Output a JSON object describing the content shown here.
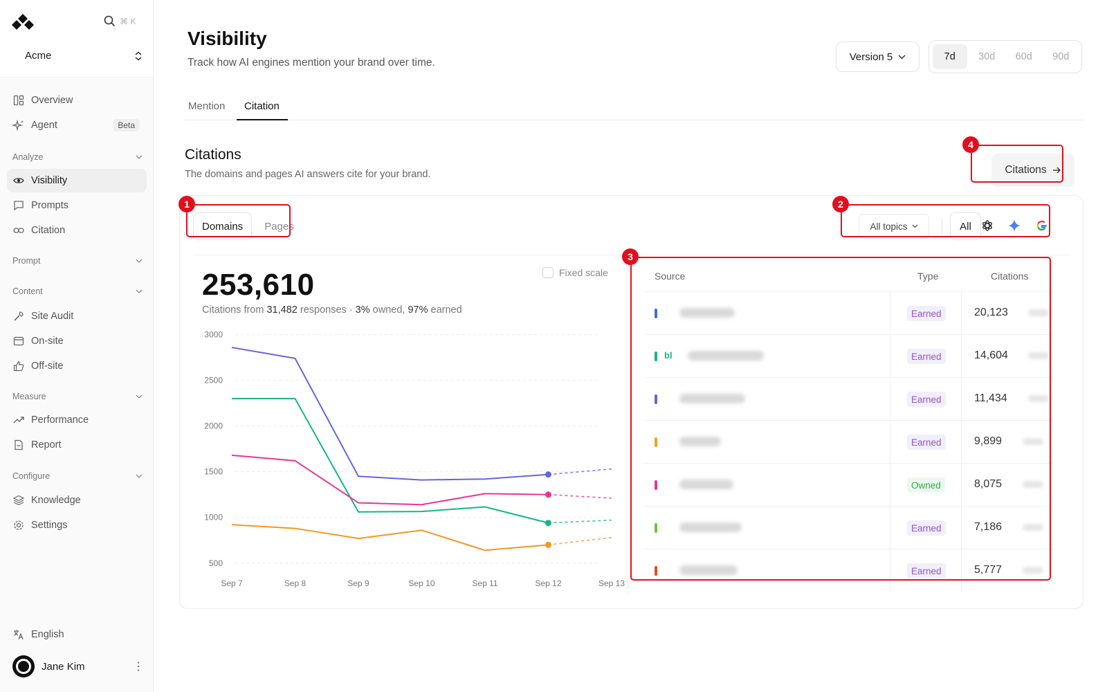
{
  "sidebar": {
    "search_shortcut": "⌘ K",
    "org_name": "Acme",
    "nav_top": [
      {
        "label": "Overview"
      },
      {
        "label": "Agent",
        "badge": "Beta"
      }
    ],
    "sections": {
      "analyze": "Analyze",
      "prompt": "Prompt",
      "content": "Content",
      "measure": "Measure",
      "configure": "Configure"
    },
    "analyze_items": [
      {
        "label": "Visibility"
      },
      {
        "label": "Prompts"
      },
      {
        "label": "Citation"
      }
    ],
    "content_items": [
      {
        "label": "Site Audit"
      },
      {
        "label": "On-site"
      },
      {
        "label": "Off-site"
      }
    ],
    "measure_items": [
      {
        "label": "Performance"
      },
      {
        "label": "Report"
      }
    ],
    "configure_items": [
      {
        "label": "Knowledge"
      },
      {
        "label": "Settings"
      }
    ],
    "language": "English",
    "user_name": "Jane Kim"
  },
  "header": {
    "title": "Visibility",
    "subtitle": "Track how AI engines mention your brand over time.",
    "version": "Version 5",
    "ranges": [
      "7d",
      "30d",
      "60d",
      "90d"
    ],
    "active_range": "7d"
  },
  "tabs": [
    {
      "label": "Mention"
    },
    {
      "label": "Citation"
    }
  ],
  "citations": {
    "title": "Citations",
    "subtitle": "The domains and pages AI answers cite for your brand.",
    "link_label": "Citations",
    "segments": [
      "Domains",
      "Pages"
    ],
    "topic_filter": "All topics",
    "engine_all": "All",
    "engines": [
      "chatgpt-icon",
      "gemini-icon",
      "google-icon"
    ],
    "total": "253,610",
    "sub_prefix": "Citations from",
    "responses": "31,482",
    "sub_mid": "responses ·",
    "owned_pct": "3%",
    "sub_owned": "owned,",
    "earned_pct": "97%",
    "sub_earned": "earned",
    "fixed_scale_label": "Fixed scale"
  },
  "annotations": [
    "1",
    "2",
    "3",
    "4"
  ],
  "table": {
    "headers": {
      "source": "Source",
      "type": "Type",
      "citations": "Citations"
    },
    "rows": [
      {
        "color": "#3b6fd4",
        "type": "Earned",
        "count": "20,123",
        "fav": ""
      },
      {
        "color": "#15b58a",
        "type": "Earned",
        "count": "14,604",
        "fav": "bl"
      },
      {
        "color": "#6366d9",
        "type": "Earned",
        "count": "11,434",
        "fav": ""
      },
      {
        "color": "#f5a020",
        "type": "Earned",
        "count": "9,899",
        "fav": ""
      },
      {
        "color": "#e8368f",
        "type": "Owned",
        "count": "8,075",
        "fav": ""
      },
      {
        "color": "#6ac43a",
        "type": "Earned",
        "count": "7,186",
        "fav": ""
      },
      {
        "color": "#ea4a1c",
        "type": "Earned",
        "count": "5,777",
        "fav": ""
      }
    ]
  },
  "chart_data": {
    "type": "line",
    "x": [
      "Sep 7",
      "Sep 8",
      "Sep 9",
      "Sep 10",
      "Sep 11",
      "Sep 12",
      "Sep 13"
    ],
    "yticks": [
      500,
      1000,
      1500,
      2000,
      2500,
      3000
    ],
    "ylim": [
      430,
      3080
    ],
    "projected_from_index": 5,
    "series": [
      {
        "color": "#6366e0",
        "values": [
          2860,
          2740,
          1450,
          1410,
          1420,
          1470,
          1530
        ]
      },
      {
        "color": "#15b58a",
        "values": [
          2300,
          2300,
          1060,
          1065,
          1115,
          940,
          970
        ]
      },
      {
        "color": "#e8368f",
        "values": [
          1680,
          1620,
          1160,
          1140,
          1260,
          1250,
          1210
        ]
      },
      {
        "color": "#f7961e",
        "values": [
          920,
          880,
          770,
          860,
          640,
          700,
          780
        ]
      }
    ],
    "grid": true,
    "legend": "none"
  }
}
